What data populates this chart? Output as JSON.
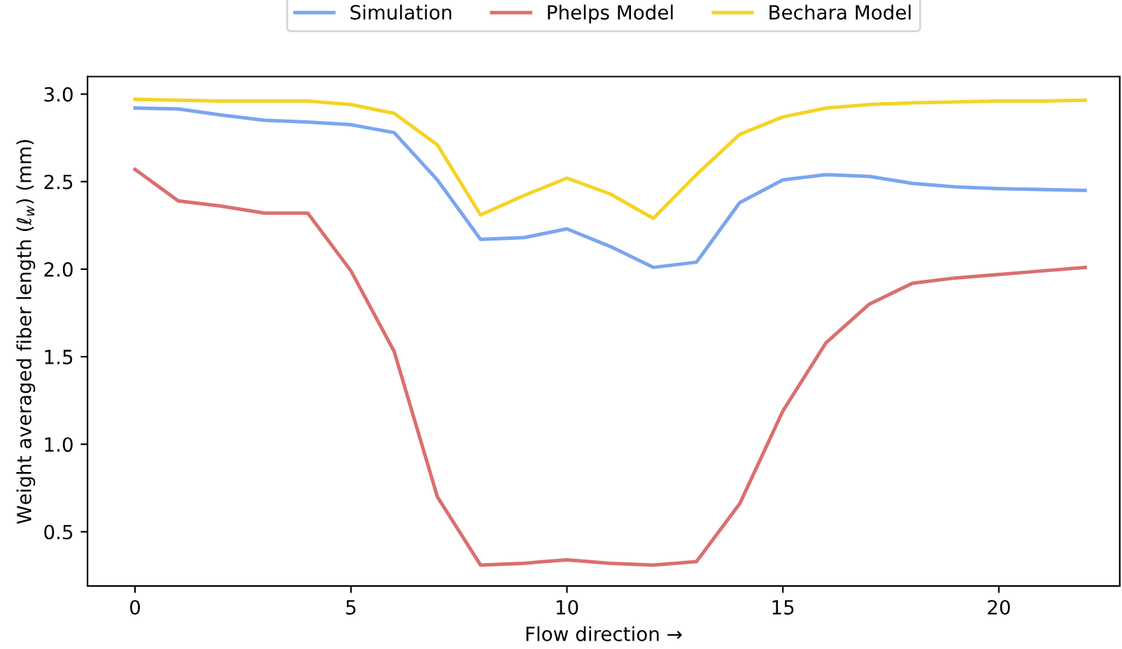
{
  "chart_data": {
    "type": "line",
    "xlabel": "Flow direction →",
    "ylabel": "Weight averaged fiber length (ℓ$_{w}$) (mm)",
    "x": [
      0,
      1,
      2,
      3,
      4,
      5,
      6,
      7,
      8,
      9,
      10,
      11,
      12,
      13,
      14,
      15,
      16,
      17,
      18,
      19,
      20,
      21,
      22
    ],
    "series": [
      {
        "name": "Simulation",
        "color": "#7ba6ee",
        "values": [
          2.92,
          2.915,
          2.88,
          2.85,
          2.84,
          2.825,
          2.78,
          2.51,
          2.17,
          2.18,
          2.23,
          2.13,
          2.01,
          2.04,
          2.38,
          2.51,
          2.54,
          2.53,
          2.49,
          2.47,
          2.46,
          2.455,
          2.45
        ]
      },
      {
        "name": "Phelps Model",
        "color": "#d9706e",
        "values": [
          2.57,
          2.39,
          2.36,
          2.32,
          2.32,
          1.99,
          1.53,
          0.7,
          0.31,
          0.32,
          0.34,
          0.32,
          0.31,
          0.33,
          0.66,
          1.19,
          1.58,
          1.8,
          1.92,
          1.95,
          1.97,
          1.99,
          2.01
        ]
      },
      {
        "name": "Bechara Model",
        "color": "#f5d327",
        "values": [
          2.97,
          2.965,
          2.96,
          2.96,
          2.96,
          2.94,
          2.89,
          2.71,
          2.31,
          2.42,
          2.52,
          2.43,
          2.29,
          2.54,
          2.77,
          2.87,
          2.92,
          2.94,
          2.95,
          2.955,
          2.96,
          2.96,
          2.965
        ]
      }
    ],
    "xlim": [
      -1.1,
      22.8
    ],
    "ylim": [
      0.19,
      3.1
    ],
    "xticks": [
      0,
      5,
      10,
      15,
      20
    ],
    "yticks": [
      0.5,
      {
        "value": 1,
        "label": "1.0"
      },
      1.5,
      {
        "value": 2,
        "label": "2.0"
      },
      2.5,
      {
        "value": 3,
        "label": "3.0"
      }
    ],
    "legend": "top",
    "grid": false
  }
}
